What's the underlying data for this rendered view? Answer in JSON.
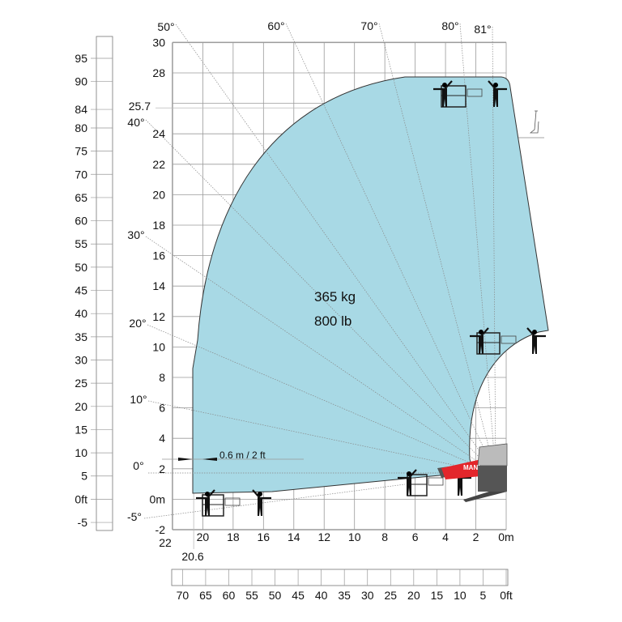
{
  "chart": {
    "envelope_color": "#a8d9e5",
    "grid_color": "#9a9a9a",
    "load": {
      "kg": "365 kg",
      "lb": "800 lb"
    },
    "reach_axis_m": {
      "ticks": [
        "22",
        "20",
        "18",
        "16",
        "14",
        "12",
        "10",
        "8",
        "6",
        "4",
        "2",
        "0m"
      ],
      "values": [
        22,
        20,
        18,
        16,
        14,
        12,
        10,
        8,
        6,
        4,
        2,
        0
      ]
    },
    "height_axis_m": {
      "ticks": [
        "30",
        "28",
        "",
        "24",
        "22",
        "20",
        "18",
        "16",
        "14",
        "12",
        "10",
        "8",
        "6",
        "4",
        "2",
        "0m",
        "-2"
      ],
      "values": [
        30,
        28,
        26,
        24,
        22,
        20,
        18,
        16,
        14,
        12,
        10,
        8,
        6,
        4,
        2,
        0,
        -2
      ]
    },
    "height_marker": {
      "label": "25.7",
      "value": 25.7
    },
    "reach_marker": {
      "label": "20.6",
      "value": 20.6
    },
    "height_axis_ft": {
      "ticks": [
        "95",
        "90",
        "84",
        "80",
        "75",
        "70",
        "65",
        "60",
        "55",
        "50",
        "45",
        "40",
        "35",
        "30",
        "25",
        "20",
        "15",
        "10",
        "5",
        "0ft",
        "-5"
      ],
      "values": [
        95,
        90,
        84,
        80,
        75,
        70,
        65,
        60,
        55,
        50,
        45,
        40,
        35,
        30,
        25,
        20,
        15,
        10,
        5,
        0,
        -5
      ]
    },
    "reach_axis_ft": {
      "ticks": [
        "70",
        "65",
        "60",
        "55",
        "50",
        "45",
        "40",
        "35",
        "30",
        "25",
        "20",
        "15",
        "10",
        "5",
        "0ft"
      ],
      "values": [
        70,
        65,
        60,
        55,
        50,
        45,
        40,
        35,
        30,
        25,
        20,
        15,
        10,
        5,
        0
      ]
    },
    "angles": [
      {
        "label": "50°",
        "deg": 50
      },
      {
        "label": "60°",
        "deg": 60
      },
      {
        "label": "70°",
        "deg": 70
      },
      {
        "label": "80°",
        "deg": 80
      },
      {
        "label": "81°",
        "deg": 81
      },
      {
        "label": "40°",
        "deg": 40
      },
      {
        "label": "30°",
        "deg": 30
      },
      {
        "label": "20°",
        "deg": 20
      },
      {
        "label": "10°",
        "deg": 10
      },
      {
        "label": "0°",
        "deg": 0
      },
      {
        "label": "-5°",
        "deg": -5
      }
    ],
    "offset_dimension": "0.6 m / 2 ft",
    "machine_brand_fragment": "MANI",
    "machine_color": "#e3262b"
  }
}
